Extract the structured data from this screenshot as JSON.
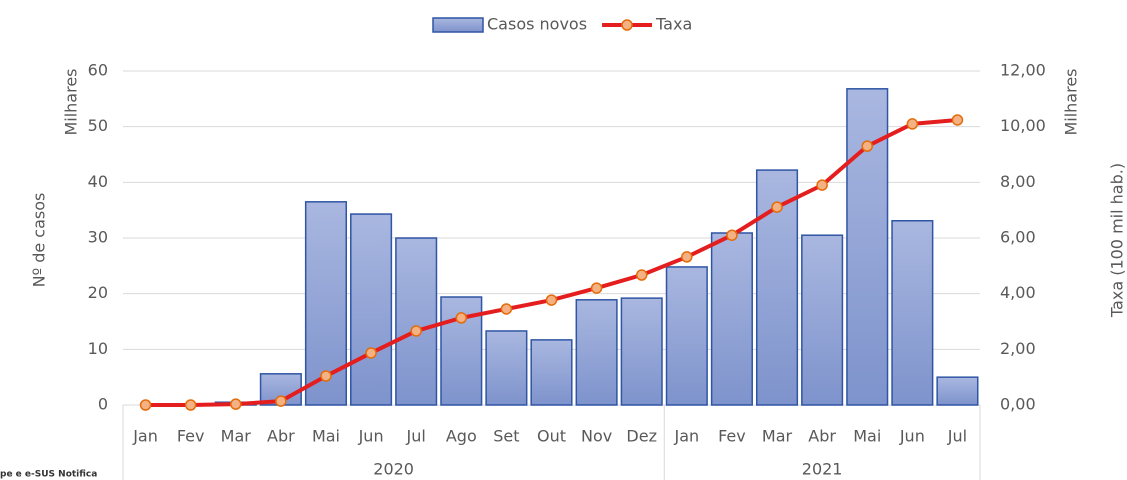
{
  "chart_data": {
    "type": "bar",
    "categories": [
      "Jan",
      "Fev",
      "Mar",
      "Abr",
      "Mai",
      "Jun",
      "Jul",
      "Ago",
      "Set",
      "Out",
      "Nov",
      "Dez",
      "Jan",
      "Fev",
      "Mar",
      "Abr",
      "Mai",
      "Jun",
      "Jul"
    ],
    "groups": [
      "2020",
      "2021"
    ],
    "series": [
      {
        "name": "Casos novos",
        "type": "bar",
        "color": "#8fa2d6",
        "edge": "#2f55a4",
        "values": [
          0,
          0,
          0.5,
          5.6,
          36.5,
          34.3,
          30,
          19.4,
          13.3,
          11.7,
          18.9,
          19.2,
          24.8,
          30.9,
          42.2,
          30.5,
          56.8,
          33.1,
          5.0
        ]
      },
      {
        "name": "Taxa",
        "type": "line",
        "axis": "y2",
        "color": "#e41e1e",
        "marker": "#f4b183",
        "marker_edge": "#e46c0a",
        "values": [
          0,
          0,
          0.03,
          0.14,
          1.04,
          1.87,
          2.66,
          3.13,
          3.45,
          3.77,
          4.2,
          4.67,
          5.32,
          6.1,
          7.11,
          7.9,
          9.3,
          10.1,
          10.24
        ]
      }
    ],
    "ylabel": "Nº de casos",
    "yunit": "Milhares",
    "y2label": "Taxa (100 mil hab.)",
    "y2unit": "Milhares",
    "ylim": [
      0,
      60
    ],
    "yticks": [
      0,
      10,
      20,
      30,
      40,
      50,
      60
    ],
    "y2lim": [
      0,
      12
    ],
    "y2ticks": [
      {
        "value": 0,
        "label": "0,00"
      },
      {
        "value": 2,
        "label": "2,00"
      },
      {
        "value": 4,
        "label": "4,00"
      },
      {
        "value": 6,
        "label": "6,00"
      },
      {
        "value": 8,
        "label": "8,00"
      },
      {
        "value": 10,
        "label": "10,00"
      },
      {
        "value": 12,
        "label": "12,00"
      }
    ],
    "grid": true,
    "legend": "top",
    "source": "pe e e-SUS Notifica"
  }
}
